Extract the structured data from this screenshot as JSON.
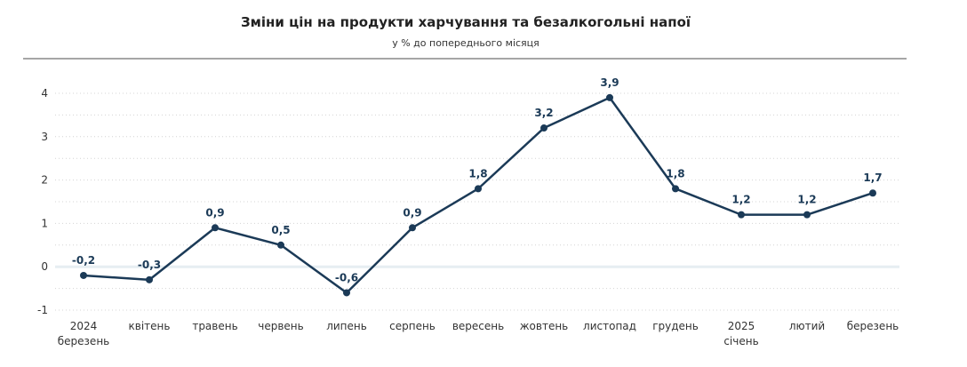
{
  "chart_data": {
    "type": "line",
    "title": "Зміни цін на продукти харчування та безалкогольні напої",
    "subtitle": "у % до попереднього місяця",
    "categories": [
      [
        "2024",
        "березень"
      ],
      [
        "квітень"
      ],
      [
        "травень"
      ],
      [
        "червень"
      ],
      [
        "липень"
      ],
      [
        "серпень"
      ],
      [
        "вересень"
      ],
      [
        "жовтень"
      ],
      [
        "листопад"
      ],
      [
        "грудень"
      ],
      [
        "2025",
        "січень"
      ],
      [
        "лютий"
      ],
      [
        "березень"
      ]
    ],
    "values": [
      -0.2,
      -0.3,
      0.9,
      0.5,
      -0.6,
      0.9,
      1.8,
      3.2,
      3.9,
      1.8,
      1.2,
      1.2,
      1.7
    ],
    "data_labels": [
      "-0,2",
      "-0,3",
      "0,9",
      "0,5",
      "-0,6",
      "0,9",
      "1,8",
      "3,2",
      "3,9",
      "1,8",
      "1,2",
      "1,2",
      "1,7"
    ],
    "yticks": [
      4,
      3,
      2,
      1,
      0,
      -1
    ],
    "ytick_labels": [
      "4",
      "3",
      "2",
      "1",
      "0",
      "-1"
    ],
    "ylim": [
      -1,
      4
    ],
    "xlabel": "",
    "ylabel": "",
    "grid": true,
    "line_color": "#1b3a57",
    "zero_line_color": "#e6eef2"
  }
}
